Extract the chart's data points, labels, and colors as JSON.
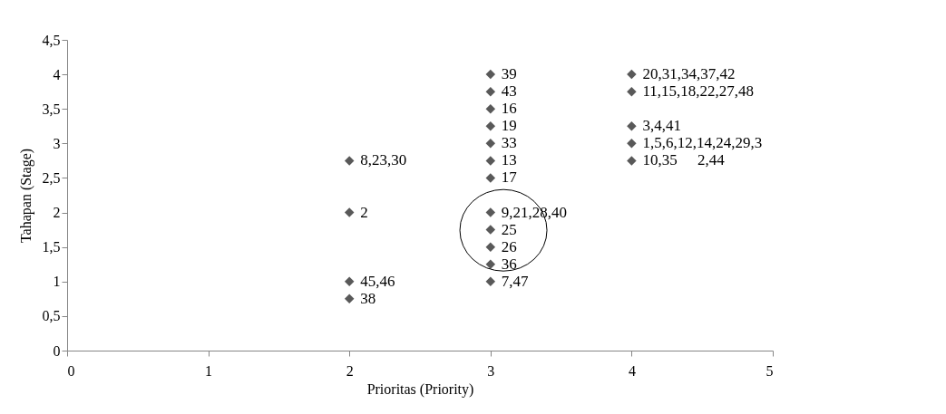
{
  "chart_data": {
    "type": "scatter",
    "xlabel": "Prioritas (Priority)",
    "ylabel": "Tahapan (Stage)",
    "marker": "diamond",
    "grid": false,
    "legend": false,
    "xlim": [
      0,
      5
    ],
    "xticks": [
      0,
      1,
      2,
      3,
      4,
      5
    ],
    "ylim": [
      0,
      4.5
    ],
    "yticks": [
      0,
      {
        "value": 0.5,
        "label": "0,5"
      },
      1,
      {
        "value": 1.5,
        "label": "1,5"
      },
      2,
      {
        "value": 2.5,
        "label": "2,5"
      },
      3,
      {
        "value": 3.5,
        "label": "3,5"
      },
      4,
      {
        "value": 4.5,
        "label": "4,5"
      }
    ],
    "series": [
      {
        "color": "#595959",
        "x": [
          2,
          2,
          2,
          2,
          3,
          3,
          3,
          3,
          3,
          3,
          3,
          3,
          3,
          3,
          3,
          3,
          4,
          4,
          4,
          4,
          4
        ],
        "values": [
          2.75,
          2,
          1,
          0.75,
          4,
          3.75,
          3.5,
          3.25,
          3,
          2.75,
          2.5,
          2,
          1.75,
          1.5,
          1.25,
          1,
          4,
          3.75,
          3.25,
          3,
          2.75
        ]
      }
    ],
    "annotations": [
      {
        "text": "8,23,30",
        "x": 2,
        "y": 2.75
      },
      {
        "text": "2",
        "x": 2,
        "y": 2
      },
      {
        "text": "45,46",
        "x": 2,
        "y": 1
      },
      {
        "text": "38",
        "x": 2,
        "y": 0.75
      },
      {
        "text": "39",
        "x": 3,
        "y": 4
      },
      {
        "text": "43",
        "x": 3,
        "y": 3.75
      },
      {
        "text": "16",
        "x": 3,
        "y": 3.5
      },
      {
        "text": "19",
        "x": 3,
        "y": 3.25
      },
      {
        "text": "33",
        "x": 3,
        "y": 3
      },
      {
        "text": "13",
        "x": 3,
        "y": 2.75
      },
      {
        "text": "17",
        "x": 3,
        "y": 2.5
      },
      {
        "text": "9,21,28,40",
        "x": 3,
        "y": 2
      },
      {
        "text": "25",
        "x": 3,
        "y": 1.75
      },
      {
        "text": "26",
        "x": 3,
        "y": 1.5
      },
      {
        "text": "36",
        "x": 3,
        "y": 1.25
      },
      {
        "text": "7,47",
        "x": 3,
        "y": 1
      },
      {
        "text": "20,31,34,37,42",
        "x": 4,
        "y": 4
      },
      {
        "text": "11,15,18,22,27,48",
        "x": 4,
        "y": 3.75
      },
      {
        "text": "3,4,41",
        "x": 4,
        "y": 3.25
      },
      {
        "text": "1,5,6,12,14,24,29,3",
        "x": 4,
        "y": 3
      },
      {
        "text": "10,35",
        "x": 4,
        "y": 2.75
      },
      "2,44"
    ]
  }
}
